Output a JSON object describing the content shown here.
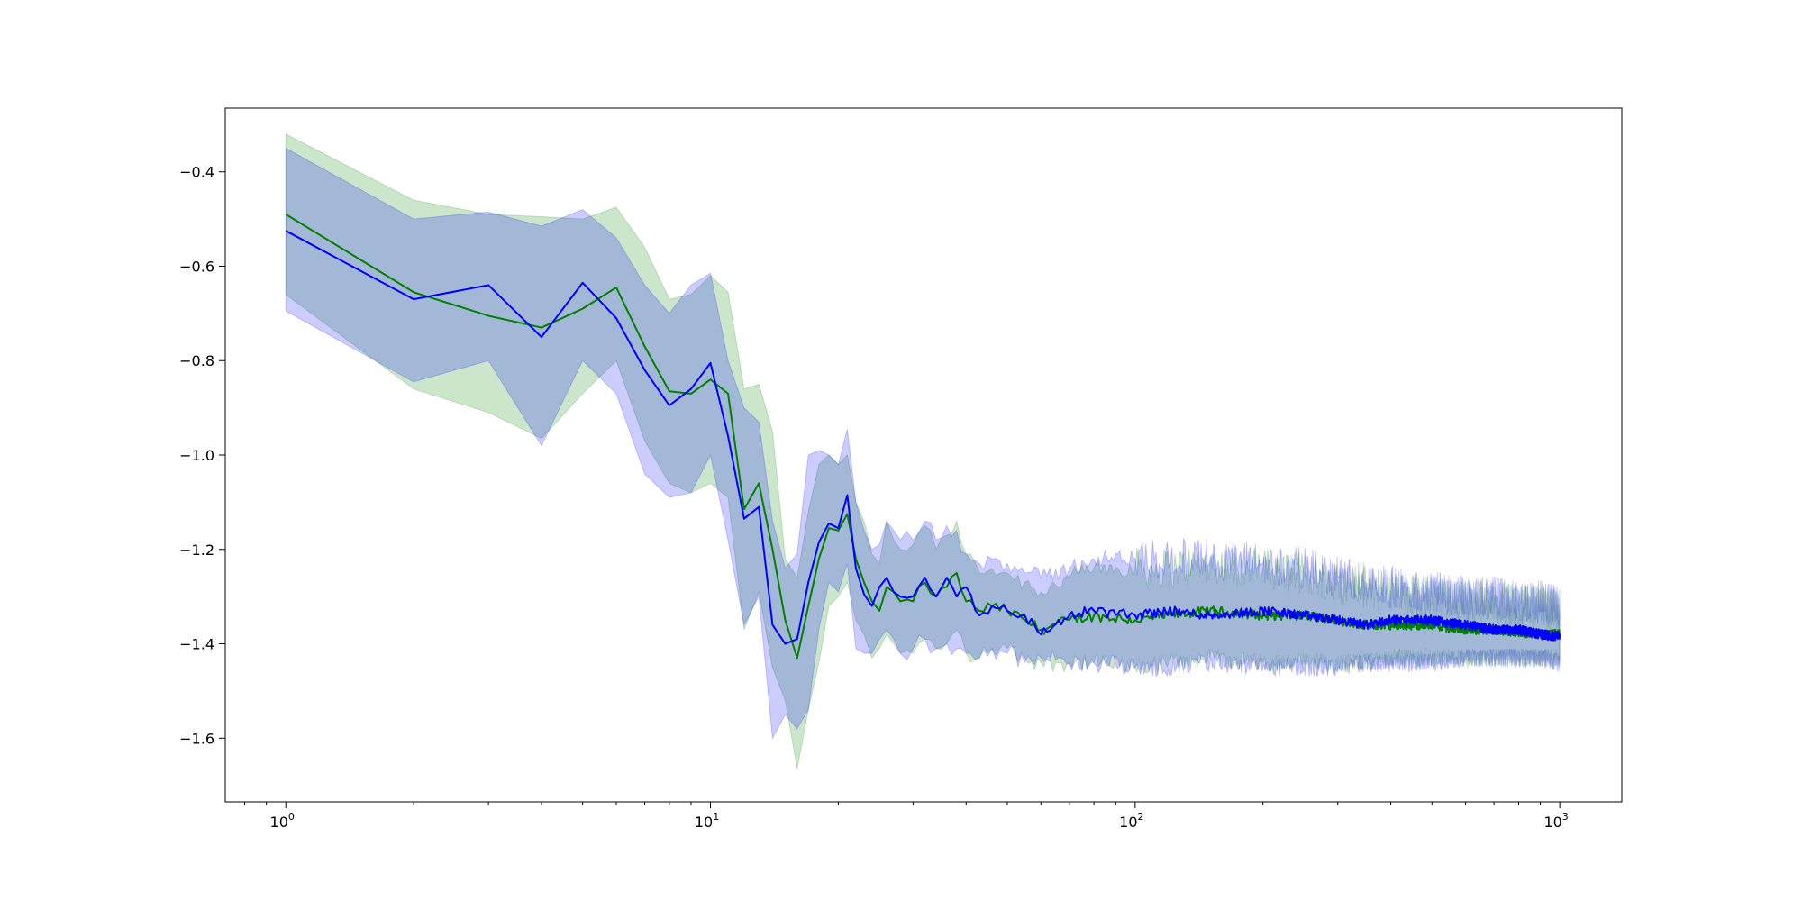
{
  "chart_data": {
    "type": "line",
    "title": "",
    "xlabel": "",
    "ylabel": "",
    "xscale": "log",
    "xlim": [
      0.72,
      1400
    ],
    "ylim": [
      -1.735,
      -0.265
    ],
    "grid": false,
    "legend": "none",
    "x_ticks": [
      {
        "value": 1,
        "base": "10",
        "exp": "0"
      },
      {
        "value": 10,
        "base": "10",
        "exp": "1"
      },
      {
        "value": 100,
        "base": "10",
        "exp": "2"
      },
      {
        "value": 1000,
        "base": "10",
        "exp": "3"
      }
    ],
    "y_ticks": [
      {
        "value": -0.4,
        "label": "−0.4"
      },
      {
        "value": -0.6,
        "label": "−0.6"
      },
      {
        "value": -0.8,
        "label": "−0.8"
      },
      {
        "value": -1.0,
        "label": "−1.0"
      },
      {
        "value": -1.2,
        "label": "−1.2"
      },
      {
        "value": -1.4,
        "label": "−1.4"
      },
      {
        "value": -1.6,
        "label": "−1.6"
      }
    ],
    "series": [
      {
        "color": "#008000",
        "band_color": "#008000",
        "x": [
          1,
          2,
          3,
          4,
          5,
          6,
          7,
          8,
          9,
          10,
          11,
          12,
          13,
          14,
          15,
          16,
          17,
          18,
          19,
          20,
          21,
          22,
          23,
          24,
          25,
          26,
          27,
          28,
          30,
          32,
          34,
          36,
          38,
          40,
          43,
          46,
          50,
          55,
          60,
          70,
          80,
          100,
          120,
          150,
          200,
          250,
          300,
          350,
          400,
          500,
          600,
          700,
          800,
          900,
          1000
        ],
        "y": [
          -0.49,
          -0.655,
          -0.705,
          -0.73,
          -0.69,
          -0.645,
          -0.77,
          -0.865,
          -0.87,
          -0.84,
          -0.87,
          -1.115,
          -1.06,
          -1.2,
          -1.35,
          -1.43,
          -1.32,
          -1.22,
          -1.155,
          -1.16,
          -1.125,
          -1.22,
          -1.27,
          -1.31,
          -1.33,
          -1.28,
          -1.29,
          -1.31,
          -1.31,
          -1.27,
          -1.3,
          -1.28,
          -1.25,
          -1.31,
          -1.33,
          -1.32,
          -1.33,
          -1.35,
          -1.37,
          -1.35,
          -1.34,
          -1.35,
          -1.34,
          -1.33,
          -1.34,
          -1.34,
          -1.35,
          -1.36,
          -1.36,
          -1.36,
          -1.37,
          -1.37,
          -1.375,
          -1.38,
          -1.38
        ],
        "upper": [
          -0.32,
          -0.46,
          -0.49,
          -0.495,
          -0.5,
          -0.475,
          -0.56,
          -0.67,
          -0.66,
          -0.62,
          -0.655,
          -0.86,
          -0.85,
          -0.95,
          -1.22,
          -1.26,
          -1.12,
          -1.02,
          -1.0,
          -1.02,
          -1.0,
          -1.1,
          -1.14,
          -1.21,
          -1.23,
          -1.14,
          -1.18,
          -1.2,
          -1.19,
          -1.15,
          -1.2,
          -1.17,
          -1.14,
          -1.21,
          -1.25,
          -1.24,
          -1.25,
          -1.27,
          -1.29,
          -1.26,
          -1.24,
          -1.24,
          -1.24,
          -1.23,
          -1.24,
          -1.25,
          -1.27,
          -1.28,
          -1.29,
          -1.3,
          -1.31,
          -1.31,
          -1.32,
          -1.32,
          -1.33
        ],
        "lower": [
          -0.66,
          -0.86,
          -0.91,
          -0.965,
          -0.87,
          -0.8,
          -0.97,
          -1.06,
          -1.08,
          -1.06,
          -1.09,
          -1.37,
          -1.29,
          -1.45,
          -1.52,
          -1.665,
          -1.54,
          -1.44,
          -1.32,
          -1.3,
          -1.27,
          -1.35,
          -1.38,
          -1.43,
          -1.41,
          -1.38,
          -1.4,
          -1.42,
          -1.42,
          -1.39,
          -1.41,
          -1.4,
          -1.37,
          -1.42,
          -1.43,
          -1.41,
          -1.41,
          -1.43,
          -1.44,
          -1.44,
          -1.44,
          -1.45,
          -1.44,
          -1.43,
          -1.44,
          -1.44,
          -1.44,
          -1.44,
          -1.43,
          -1.43,
          -1.43,
          -1.43,
          -1.43,
          -1.43,
          -1.43
        ]
      },
      {
        "color": "#0000ff",
        "band_color": "#0000ff",
        "x": [
          1,
          2,
          3,
          4,
          5,
          6,
          7,
          8,
          9,
          10,
          11,
          12,
          13,
          14,
          15,
          16,
          17,
          18,
          19,
          20,
          21,
          22,
          23,
          24,
          25,
          26,
          27,
          28,
          30,
          32,
          34,
          36,
          38,
          40,
          43,
          46,
          50,
          55,
          60,
          70,
          80,
          100,
          120,
          150,
          200,
          250,
          300,
          350,
          400,
          500,
          600,
          700,
          800,
          900,
          1000
        ],
        "y": [
          -0.525,
          -0.67,
          -0.64,
          -0.75,
          -0.635,
          -0.71,
          -0.82,
          -0.895,
          -0.86,
          -0.805,
          -0.96,
          -1.135,
          -1.11,
          -1.36,
          -1.4,
          -1.39,
          -1.27,
          -1.185,
          -1.145,
          -1.155,
          -1.085,
          -1.24,
          -1.295,
          -1.32,
          -1.28,
          -1.26,
          -1.29,
          -1.3,
          -1.3,
          -1.26,
          -1.3,
          -1.26,
          -1.3,
          -1.28,
          -1.34,
          -1.32,
          -1.33,
          -1.34,
          -1.38,
          -1.34,
          -1.33,
          -1.34,
          -1.33,
          -1.34,
          -1.33,
          -1.34,
          -1.35,
          -1.36,
          -1.35,
          -1.35,
          -1.36,
          -1.37,
          -1.37,
          -1.38,
          -1.385
        ],
        "upper": [
          -0.35,
          -0.5,
          -0.485,
          -0.515,
          -0.48,
          -0.54,
          -0.64,
          -0.7,
          -0.64,
          -0.615,
          -0.8,
          -0.9,
          -0.93,
          -1.14,
          -1.24,
          -1.21,
          -1.0,
          -0.99,
          -1.0,
          -1.02,
          -0.945,
          -1.1,
          -1.16,
          -1.2,
          -1.19,
          -1.14,
          -1.16,
          -1.18,
          -1.18,
          -1.14,
          -1.18,
          -1.15,
          -1.16,
          -1.21,
          -1.23,
          -1.22,
          -1.23,
          -1.25,
          -1.26,
          -1.24,
          -1.22,
          -1.22,
          -1.22,
          -1.22,
          -1.23,
          -1.24,
          -1.26,
          -1.27,
          -1.28,
          -1.29,
          -1.3,
          -1.3,
          -1.31,
          -1.31,
          -1.32
        ],
        "lower": [
          -0.695,
          -0.845,
          -0.8,
          -0.98,
          -0.8,
          -0.87,
          -1.04,
          -1.09,
          -1.08,
          -1.0,
          -1.18,
          -1.36,
          -1.3,
          -1.6,
          -1.55,
          -1.58,
          -1.54,
          -1.37,
          -1.27,
          -1.29,
          -1.23,
          -1.41,
          -1.42,
          -1.42,
          -1.39,
          -1.37,
          -1.39,
          -1.42,
          -1.41,
          -1.39,
          -1.41,
          -1.4,
          -1.41,
          -1.42,
          -1.43,
          -1.41,
          -1.42,
          -1.44,
          -1.43,
          -1.44,
          -1.44,
          -1.45,
          -1.45,
          -1.44,
          -1.45,
          -1.45,
          -1.45,
          -1.44,
          -1.44,
          -1.44,
          -1.43,
          -1.43,
          -1.43,
          -1.43,
          -1.44
        ]
      }
    ]
  }
}
